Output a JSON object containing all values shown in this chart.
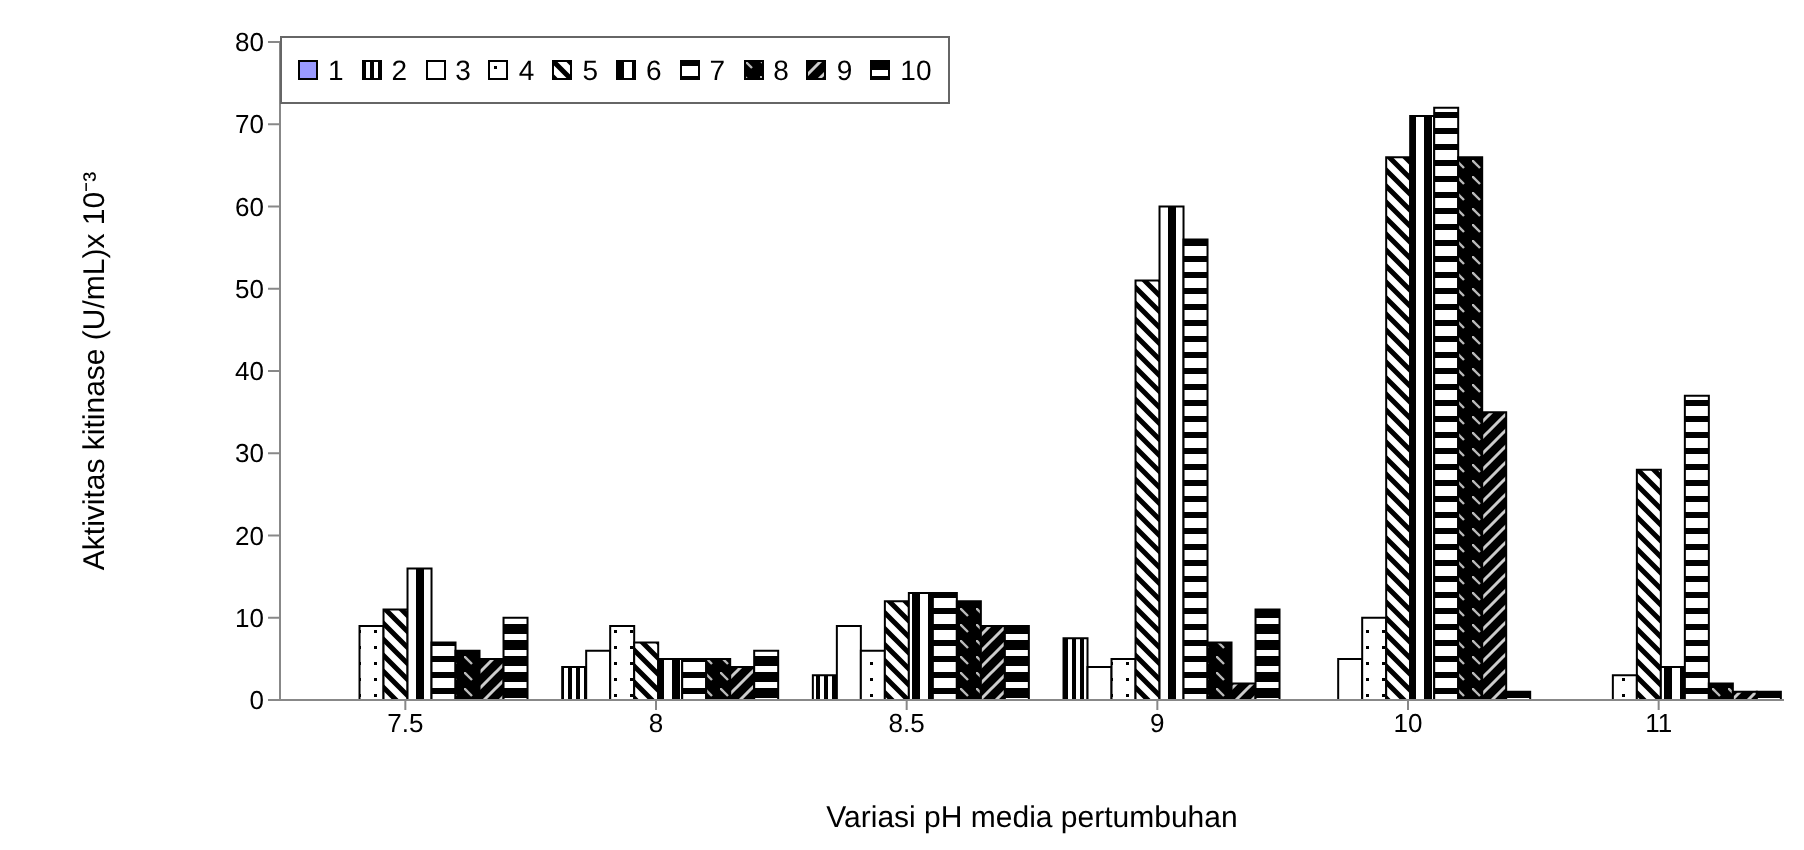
{
  "chart_data": {
    "type": "bar",
    "xlabel": "Variasi pH media pertumbuhan",
    "ylabel": "Aktivitas kitinase (U/mL)x 10⁻³",
    "categories": [
      "7.5",
      "8",
      "8.5",
      "9",
      "10",
      "11"
    ],
    "series": [
      {
        "name": "1",
        "color": "#9999ff",
        "values": [
          null,
          null,
          null,
          null,
          null,
          null
        ]
      },
      {
        "name": "2",
        "color": "#000000",
        "values": [
          null,
          4,
          3,
          7.5,
          null,
          null
        ]
      },
      {
        "name": "3",
        "color": "#ffffff",
        "values": [
          null,
          6,
          9,
          4,
          5,
          null
        ]
      },
      {
        "name": "4",
        "color": "#000000",
        "values": [
          9,
          9,
          6,
          5,
          10,
          3
        ]
      },
      {
        "name": "5",
        "color": "#000000",
        "values": [
          11,
          7,
          12,
          51,
          66,
          28
        ]
      },
      {
        "name": "6",
        "color": "#000000",
        "values": [
          16,
          5,
          13,
          60,
          71,
          4
        ]
      },
      {
        "name": "7",
        "color": "#000000",
        "values": [
          7,
          5,
          13,
          56,
          72,
          37
        ]
      },
      {
        "name": "8",
        "color": "#000000",
        "values": [
          6,
          5,
          12,
          7,
          66,
          2
        ]
      },
      {
        "name": "9",
        "color": "#000000",
        "values": [
          5,
          4,
          9,
          2,
          35,
          1
        ]
      },
      {
        "name": "10",
        "color": "#000000",
        "values": [
          10,
          6,
          9,
          11,
          1,
          1
        ]
      }
    ],
    "ylim": [
      0,
      80
    ],
    "yticks": [
      0,
      10,
      20,
      30,
      40,
      50,
      60,
      70,
      80
    ],
    "grid": false,
    "legend": "top left"
  }
}
